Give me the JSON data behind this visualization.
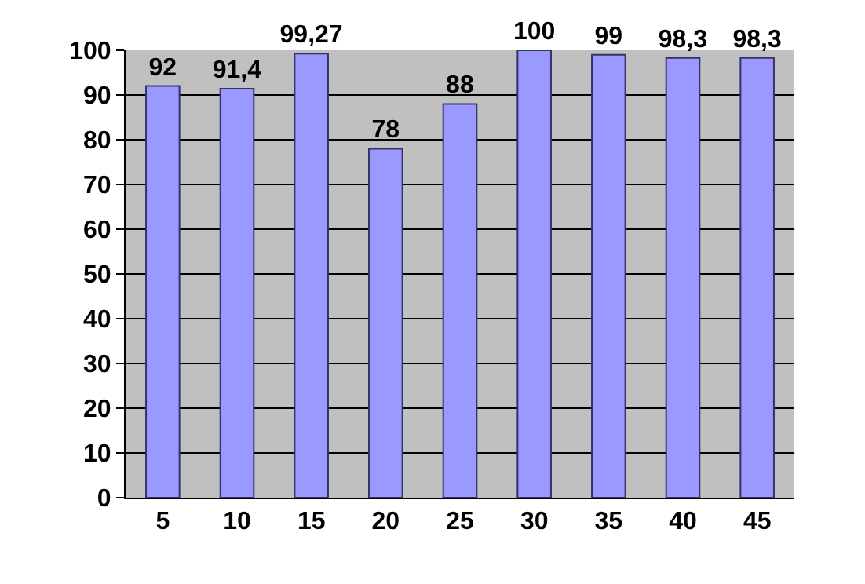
{
  "chart_data": {
    "type": "bar",
    "categories": [
      "5",
      "10",
      "15",
      "20",
      "25",
      "30",
      "35",
      "40",
      "45"
    ],
    "values": [
      92,
      91.4,
      99.27,
      78,
      88,
      100,
      99,
      98.3,
      98.3
    ],
    "value_labels": [
      "92",
      "91,4",
      "99,27",
      "78",
      "88",
      "100",
      "99",
      "98,3",
      "98,3"
    ],
    "color": "#9999ff",
    "ylim": [
      0,
      100
    ],
    "yticks": [
      0,
      10,
      20,
      30,
      40,
      50,
      60,
      70,
      80,
      90,
      100
    ],
    "grid": "y"
  }
}
